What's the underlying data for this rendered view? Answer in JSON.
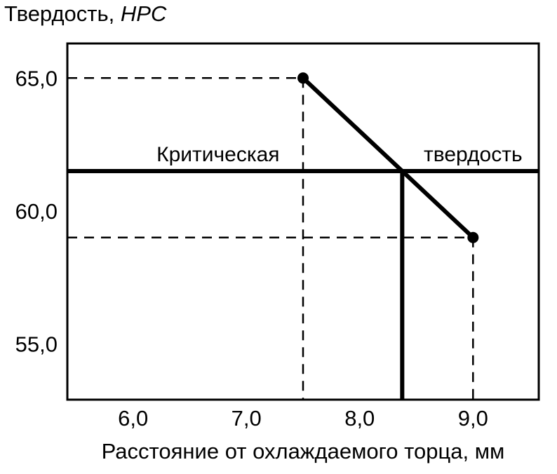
{
  "chart_data": {
    "type": "line",
    "title": "Твердость, НРС",
    "ylabel": "Твердость, НРС",
    "ylabel_prefix": "Твердость, ",
    "ylabel_units": "НРС",
    "xlabel": "Расстояние от охлаждаемого торца, мм",
    "xlim": [
      5.42,
      9.58
    ],
    "ylim": [
      52.9,
      66.3
    ],
    "grid": false,
    "legend": false,
    "x_ticks": [
      {
        "value": 6.0,
        "label": "6,0"
      },
      {
        "value": 7.0,
        "label": "7,0"
      },
      {
        "value": 8.0,
        "label": "8,0"
      },
      {
        "value": 9.0,
        "label": "9,0"
      }
    ],
    "y_ticks": [
      {
        "value": 65.0,
        "label": "65,0"
      },
      {
        "value": 60.0,
        "label": "60,0"
      },
      {
        "value": 55.0,
        "label": "55,0"
      }
    ],
    "series": [
      {
        "name": "hardness-vs-distance",
        "points": [
          {
            "x": 7.5,
            "y": 65.0
          },
          {
            "x": 9.0,
            "y": 59.0
          }
        ]
      }
    ],
    "critical_hardness": 61.5,
    "critical_distance": 8.375,
    "annotations": [
      {
        "text": "Критическая",
        "x": 6.75
      },
      {
        "text": "твердость",
        "x": 9.0
      }
    ],
    "decimal_separator": ","
  }
}
